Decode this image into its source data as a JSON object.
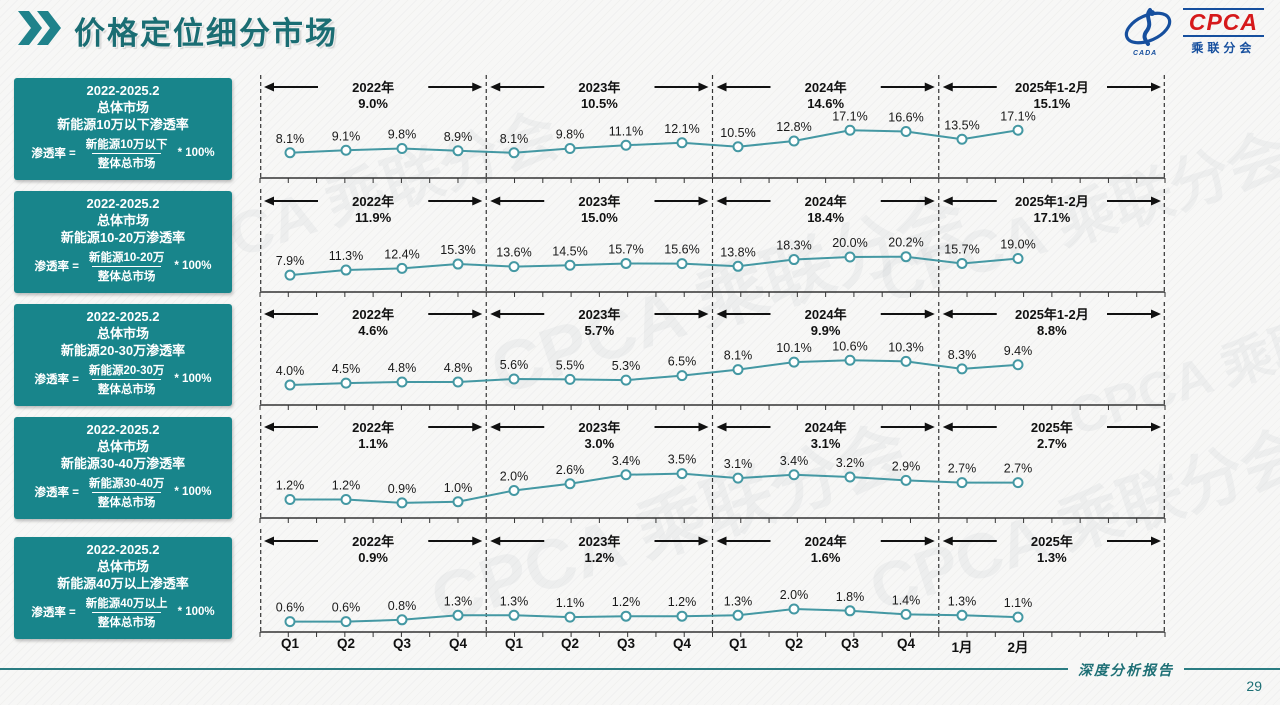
{
  "page": {
    "title": "价格定位细分市场",
    "footer_text": "深度分析报告",
    "page_number": "29"
  },
  "logo": {
    "name": "CPCA",
    "subtitle": "乘联分会",
    "emblem_caption": "CADA"
  },
  "watermark": {
    "text": "CPCA 乘联分会"
  },
  "colors": {
    "accent_teal": "#18858b",
    "line_teal": "#4498a3",
    "title_teal": "#1a6d73",
    "footer_teal": "#2a7c82",
    "logo_blue": "#164f9e",
    "logo_red": "#d6191b",
    "ink": "#1a1a1a"
  },
  "x_axis_labels": [
    "Q1",
    "Q2",
    "Q3",
    "Q4",
    "Q1",
    "Q2",
    "Q3",
    "Q4",
    "Q1",
    "Q2",
    "Q3",
    "Q4",
    "1月",
    "2月"
  ],
  "rows": [
    {
      "sidebar": {
        "period": "2022-2025.2",
        "market": "总体市场",
        "title": "新能源10万以下渗透率",
        "formula_prefix": "渗透率 =",
        "numerator": "新能源10万以下",
        "denominator": "整体总市场",
        "suffix": "* 100%"
      }
    },
    {
      "sidebar": {
        "period": "2022-2025.2",
        "market": "总体市场",
        "title": "新能源10-20万渗透率",
        "formula_prefix": "渗透率 =",
        "numerator": "新能源10-20万",
        "denominator": "整体总市场",
        "suffix": "* 100%"
      }
    },
    {
      "sidebar": {
        "period": "2022-2025.2",
        "market": "总体市场",
        "title": "新能源20-30万渗透率",
        "formula_prefix": "渗透率 =",
        "numerator": "新能源20-30万",
        "denominator": "整体总市场",
        "suffix": "* 100%"
      }
    },
    {
      "sidebar": {
        "period": "2022-2025.2",
        "market": "总体市场",
        "title": "新能源30-40万渗透率",
        "formula_prefix": "渗透率 =",
        "numerator": "新能源30-40万",
        "denominator": "整体总市场",
        "suffix": "* 100%"
      }
    },
    {
      "sidebar": {
        "period": "2022-2025.2",
        "market": "总体市场",
        "title": "新能源40万以上渗透率",
        "formula_prefix": "渗透率 =",
        "numerator": "新能源40万以上",
        "denominator": "整体总市场",
        "suffix": "* 100%"
      }
    }
  ],
  "chart_data": [
    {
      "type": "line",
      "title": "新能源10万以下渗透率",
      "unit": "%",
      "categories": [
        "Q1",
        "Q2",
        "Q3",
        "Q4",
        "Q1",
        "Q2",
        "Q3",
        "Q4",
        "Q1",
        "Q2",
        "Q3",
        "Q4",
        "1月",
        "2月"
      ],
      "values": [
        8.1,
        9.1,
        9.8,
        8.9,
        8.1,
        9.8,
        11.1,
        12.1,
        10.5,
        12.8,
        17.1,
        16.6,
        13.5,
        17.1
      ],
      "data_labels": [
        "8.1%",
        "9.1%",
        "9.8%",
        "8.9%",
        "8.1%",
        "9.8%",
        "11.1%",
        "12.1%",
        "10.5%",
        "12.8%",
        "17.1%",
        "16.6%",
        "13.5%",
        "17.1%"
      ],
      "period_averages": [
        {
          "label": "2022年",
          "value": "9.0%"
        },
        {
          "label": "2023年",
          "value": "10.5%"
        },
        {
          "label": "2024年",
          "value": "14.6%"
        },
        {
          "label": "2025年1-2月",
          "value": "15.1%"
        }
      ],
      "ylim": [
        0,
        18
      ],
      "grid": false,
      "legend": "none"
    },
    {
      "type": "line",
      "title": "新能源10-20万渗透率",
      "unit": "%",
      "categories": [
        "Q1",
        "Q2",
        "Q3",
        "Q4",
        "Q1",
        "Q2",
        "Q3",
        "Q4",
        "Q1",
        "Q2",
        "Q3",
        "Q4",
        "1月",
        "2月"
      ],
      "values": [
        7.9,
        11.3,
        12.4,
        15.3,
        13.6,
        14.5,
        15.7,
        15.6,
        13.8,
        18.3,
        20.0,
        20.2,
        15.7,
        19.0
      ],
      "data_labels": [
        "7.9%",
        "11.3%",
        "12.4%",
        "15.3%",
        "13.6%",
        "14.5%",
        "15.7%",
        "15.6%",
        "13.8%",
        "18.3%",
        "20.0%",
        "20.2%",
        "15.7%",
        "19.0%"
      ],
      "period_averages": [
        {
          "label": "2022年",
          "value": "11.9%"
        },
        {
          "label": "2023年",
          "value": "15.0%"
        },
        {
          "label": "2024年",
          "value": "18.4%"
        },
        {
          "label": "2025年1-2月",
          "value": "17.1%"
        }
      ],
      "ylim": [
        0,
        30
      ],
      "grid": false,
      "legend": "none"
    },
    {
      "type": "line",
      "title": "新能源20-30万渗透率",
      "unit": "%",
      "categories": [
        "Q1",
        "Q2",
        "Q3",
        "Q4",
        "Q1",
        "Q2",
        "Q3",
        "Q4",
        "Q1",
        "Q2",
        "Q3",
        "Q4",
        "1月",
        "2月"
      ],
      "values": [
        4.0,
        4.5,
        4.8,
        4.8,
        5.6,
        5.5,
        5.3,
        6.5,
        8.1,
        10.1,
        10.6,
        10.3,
        8.3,
        9.4
      ],
      "data_labels": [
        "4.0%",
        "4.5%",
        "4.8%",
        "4.8%",
        "5.6%",
        "5.5%",
        "5.3%",
        "6.5%",
        "8.1%",
        "10.1%",
        "10.6%",
        "10.3%",
        "8.3%",
        "9.4%"
      ],
      "period_averages": [
        {
          "label": "2022年",
          "value": "4.6%"
        },
        {
          "label": "2023年",
          "value": "5.7%"
        },
        {
          "label": "2024年",
          "value": "9.9%"
        },
        {
          "label": "2025年1-2月",
          "value": "8.8%"
        }
      ],
      "ylim": [
        0,
        12
      ],
      "grid": false,
      "legend": "none"
    },
    {
      "type": "line",
      "title": "新能源30-40万渗透率",
      "unit": "%",
      "categories": [
        "Q1",
        "Q2",
        "Q3",
        "Q4",
        "Q1",
        "Q2",
        "Q3",
        "Q4",
        "Q1",
        "Q2",
        "Q3",
        "Q4",
        "1月",
        "2月"
      ],
      "values": [
        1.2,
        1.2,
        0.9,
        1.0,
        2.0,
        2.6,
        3.4,
        3.5,
        3.1,
        3.4,
        3.2,
        2.9,
        2.7,
        2.7
      ],
      "data_labels": [
        "1.2%",
        "1.2%",
        "0.9%",
        "1.0%",
        "2.0%",
        "2.6%",
        "3.4%",
        "3.5%",
        "3.1%",
        "3.4%",
        "3.2%",
        "2.9%",
        "2.7%",
        "2.7%"
      ],
      "period_averages": [
        {
          "label": "2022年",
          "value": "1.1%"
        },
        {
          "label": "2023年",
          "value": "3.0%"
        },
        {
          "label": "2024年",
          "value": "3.1%"
        },
        {
          "label": "2025年",
          "value": "2.7%"
        }
      ],
      "ylim": [
        0,
        4
      ],
      "grid": false,
      "legend": "none"
    },
    {
      "type": "line",
      "title": "新能源40万以上渗透率",
      "unit": "%",
      "categories": [
        "Q1",
        "Q2",
        "Q3",
        "Q4",
        "Q1",
        "Q2",
        "Q3",
        "Q4",
        "Q1",
        "Q2",
        "Q3",
        "Q4",
        "1月",
        "2月"
      ],
      "values": [
        0.6,
        0.6,
        0.8,
        1.3,
        1.3,
        1.1,
        1.2,
        1.2,
        1.3,
        2.0,
        1.8,
        1.4,
        1.3,
        1.1
      ],
      "data_labels": [
        "0.6%",
        "0.6%",
        "0.8%",
        "1.3%",
        "1.3%",
        "1.1%",
        "1.2%",
        "1.2%",
        "1.3%",
        "2.0%",
        "1.8%",
        "1.4%",
        "1.3%",
        "1.1%"
      ],
      "period_averages": [
        {
          "label": "2022年",
          "value": "0.9%"
        },
        {
          "label": "2023年",
          "value": "1.2%"
        },
        {
          "label": "2024年",
          "value": "1.6%"
        },
        {
          "label": "2025年",
          "value": "1.3%"
        }
      ],
      "ylim": [
        0,
        5
      ],
      "grid": false,
      "legend": "none"
    }
  ]
}
